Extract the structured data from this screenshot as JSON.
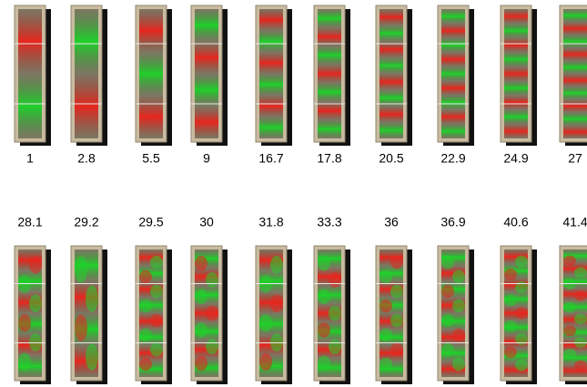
{
  "rows": [
    {
      "labels": [
        "1",
        "2.8",
        "5.5",
        "9",
        "16.7",
        "17.8",
        "20.5",
        "22.9",
        "24.9",
        "27"
      ]
    },
    {
      "labels": [
        "28.1",
        "29.2",
        "29.5",
        "30",
        "31.8",
        "33.3",
        "36",
        "36.9",
        "40.6",
        "41.4"
      ]
    }
  ]
}
